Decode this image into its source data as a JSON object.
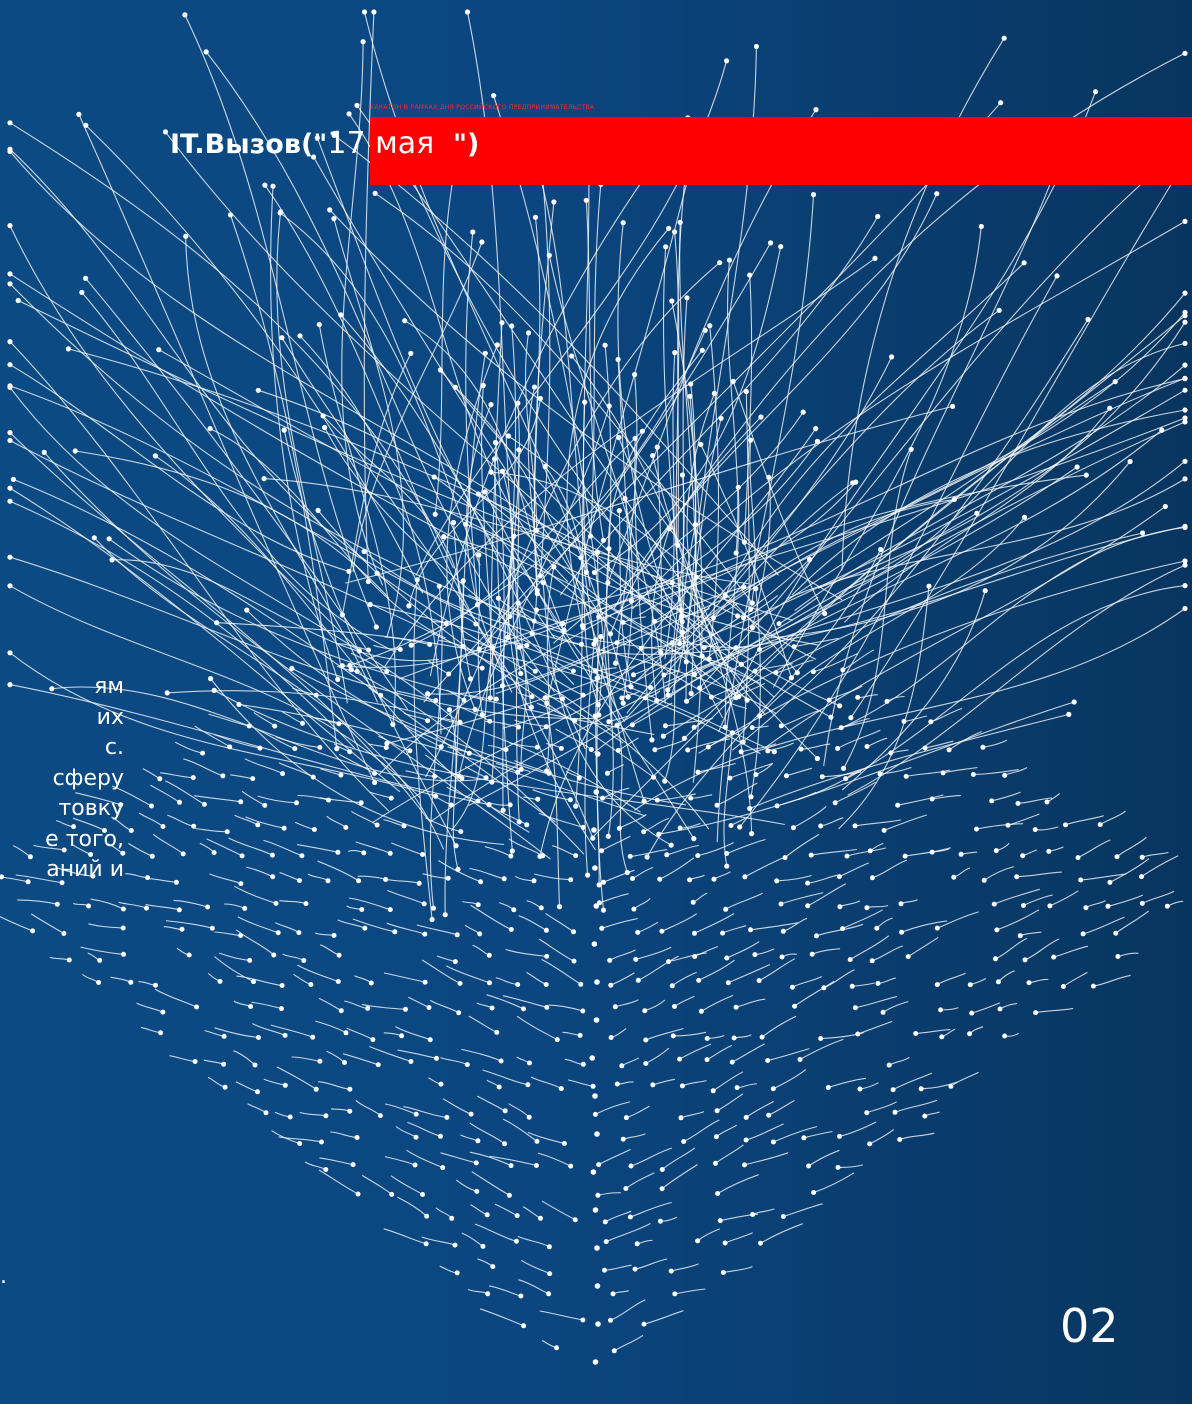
{
  "header": {
    "subtitle": "хакатон в рамках дня российского предпринимательства",
    "brand": "IT.Вызов",
    "quote_open": "(\"",
    "date": "17 мая",
    "quote_close": "\")"
  },
  "body_text_lines": [
    "ям",
    "их",
    "с.",
    "сферу",
    "товку",
    "е того,",
    "аний и"
  ],
  "body_text_tail": ".",
  "page_number": "02",
  "colors": {
    "background": "#0b4680",
    "accent": "#ff0000",
    "lines": "#ffffff"
  }
}
